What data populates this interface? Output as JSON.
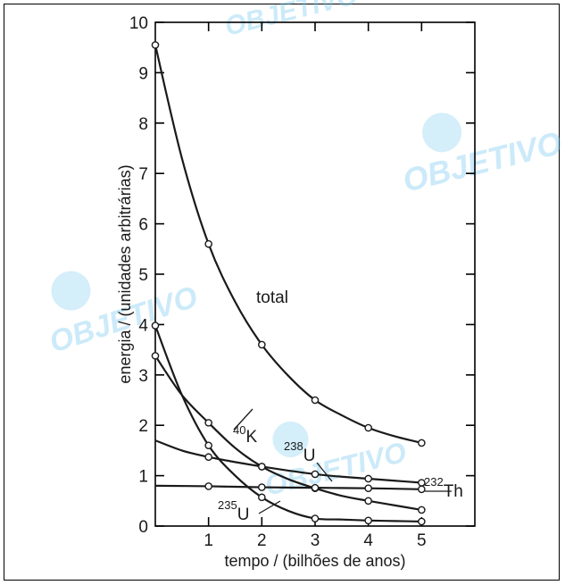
{
  "watermark": "OBJETIVO",
  "chart_data": {
    "type": "line",
    "title": "",
    "xlabel": "tempo / (bilhões de anos)",
    "ylabel": "energia / (unidades arbitrárias)",
    "xlim": [
      0,
      6
    ],
    "ylim": [
      0,
      10
    ],
    "x_ticks": [
      0,
      1,
      2,
      3,
      4,
      5
    ],
    "x_tick_labels": [
      "0",
      "1",
      "2",
      "3",
      "4",
      "5"
    ],
    "y_ticks": [
      0,
      1,
      2,
      3,
      4,
      5,
      6,
      7,
      8,
      9,
      10
    ],
    "y_tick_labels": [
      "0",
      "1",
      "2",
      "3",
      "4",
      "5",
      "6",
      "7",
      "8",
      "9",
      "10"
    ],
    "grid": false,
    "legend": "none",
    "series": [
      {
        "key": "total",
        "label_sup": "",
        "label_main": "total",
        "curve_x": [
          0,
          0.5,
          1,
          1.5,
          2,
          2.5,
          3,
          3.5,
          4,
          4.5,
          5
        ],
        "curve_y": [
          9.55,
          7.3,
          5.6,
          4.45,
          3.6,
          2.98,
          2.5,
          2.2,
          1.95,
          1.78,
          1.65
        ],
        "markers_x": [
          0,
          1,
          2,
          3,
          4,
          5
        ],
        "markers_y": [
          9.55,
          5.6,
          3.6,
          2.5,
          1.95,
          1.65
        ]
      },
      {
        "key": "K40",
        "label_sup": "40",
        "label_main": "K",
        "curve_x": [
          0,
          0.5,
          1,
          1.5,
          2,
          2.5,
          3,
          3.5,
          4,
          4.5,
          5
        ],
        "curve_y": [
          3.98,
          2.6,
          1.6,
          1.0,
          0.57,
          0.3,
          0.15,
          0.13,
          0.11,
          0.1,
          0.09
        ],
        "markers_x": [
          0,
          1,
          2,
          3,
          4,
          5
        ],
        "markers_y": [
          3.98,
          1.6,
          0.57,
          0.15,
          0.11,
          0.09
        ]
      },
      {
        "key": "U238",
        "label_sup": "238",
        "label_main": "U",
        "curve_x": [
          0,
          0.5,
          1,
          1.5,
          2,
          2.5,
          3,
          3.5,
          4,
          4.5,
          5
        ],
        "curve_y": [
          1.7,
          1.5,
          1.37,
          1.27,
          1.18,
          1.1,
          1.03,
          0.98,
          0.94,
          0.9,
          0.86
        ],
        "markers_x": [
          1,
          2,
          3,
          4,
          5
        ],
        "markers_y": [
          1.37,
          1.18,
          1.03,
          0.94,
          0.86
        ]
      },
      {
        "key": "U235",
        "label_sup": "235",
        "label_main": "U",
        "curve_x": [
          0,
          0.5,
          1,
          1.5,
          2,
          2.5,
          3,
          3.5,
          4,
          4.5,
          5
        ],
        "curve_y": [
          3.38,
          2.6,
          2.05,
          1.55,
          1.18,
          0.93,
          0.75,
          0.6,
          0.5,
          0.41,
          0.32
        ],
        "markers_x": [
          0,
          1,
          2,
          3,
          4,
          5
        ],
        "markers_y": [
          3.38,
          2.05,
          1.18,
          0.75,
          0.5,
          0.32
        ]
      },
      {
        "key": "Th232",
        "label_sup": "232",
        "label_main": "Th",
        "curve_x": [
          0,
          1,
          2,
          3,
          4,
          5
        ],
        "curve_y": [
          0.8,
          0.79,
          0.77,
          0.76,
          0.75,
          0.73
        ],
        "markers_x": [
          1,
          2,
          3,
          4,
          5
        ],
        "markers_y": [
          0.79,
          0.77,
          0.76,
          0.75,
          0.73
        ]
      }
    ]
  }
}
